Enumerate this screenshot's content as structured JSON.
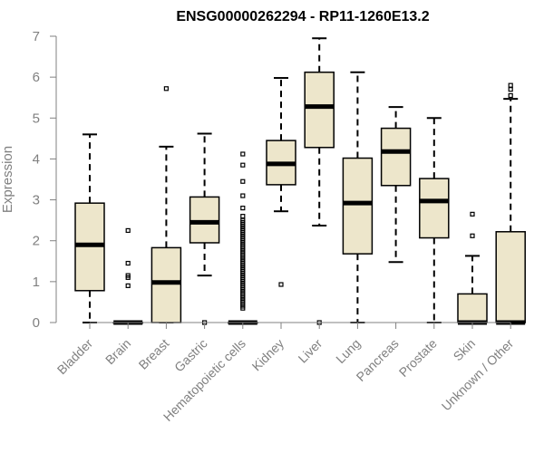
{
  "chart_data": {
    "type": "boxplot",
    "title": "ENSG00000262294 - RP11-1260E13.2",
    "ylabel": "Expression",
    "ylim": [
      0,
      7
    ],
    "yticks": [
      0,
      1,
      2,
      3,
      4,
      5,
      6,
      7
    ],
    "grid": false,
    "legend": "none",
    "box_fill": "#ede6cb",
    "categories": [
      "Bladder",
      "Brain",
      "Breast",
      "Gastric",
      "Hematopoietic cells",
      "Kidney",
      "Liver",
      "Lung",
      "Pancreas",
      "Prostate",
      "Skin",
      "Unknown / Other"
    ],
    "boxes": [
      {
        "name": "Bladder",
        "whisker_low": 0,
        "q1": 0.78,
        "median": 1.9,
        "q3": 2.92,
        "whisker_high": 4.6,
        "outliers": []
      },
      {
        "name": "Brain",
        "whisker_low": 0,
        "q1": 0,
        "median": 0,
        "q3": 0,
        "whisker_high": 0,
        "outliers": [
          0.9,
          1.1,
          1.15,
          1.45,
          2.25
        ]
      },
      {
        "name": "Breast",
        "whisker_low": 0,
        "q1": 0,
        "median": 0.98,
        "q3": 1.83,
        "whisker_high": 4.3,
        "outliers": [
          5.72
        ]
      },
      {
        "name": "Gastric",
        "whisker_low": 1.15,
        "q1": 1.95,
        "median": 2.45,
        "q3": 3.07,
        "whisker_high": 4.62,
        "outliers": [
          0
        ]
      },
      {
        "name": "Hematopoietic cells",
        "whisker_low": 0,
        "q1": 0,
        "median": 0,
        "q3": 0,
        "whisker_high": 0,
        "outliers": [
          0.35,
          0.4,
          0.45,
          0.5,
          0.55,
          0.6,
          0.65,
          0.7,
          0.75,
          0.8,
          0.85,
          0.9,
          0.95,
          1.0,
          1.05,
          1.1,
          1.15,
          1.2,
          1.25,
          1.3,
          1.35,
          1.4,
          1.45,
          1.5,
          1.55,
          1.6,
          1.65,
          1.7,
          1.75,
          1.8,
          1.85,
          1.9,
          1.95,
          2.0,
          2.05,
          2.1,
          2.15,
          2.2,
          2.25,
          2.3,
          2.35,
          2.4,
          2.45,
          2.5,
          2.6,
          2.8,
          3.1,
          3.45,
          3.85,
          4.12
        ]
      },
      {
        "name": "Kidney",
        "whisker_low": 2.72,
        "q1": 3.37,
        "median": 3.88,
        "q3": 4.45,
        "whisker_high": 5.98,
        "outliers": [
          0.93
        ]
      },
      {
        "name": "Liver",
        "whisker_low": 2.37,
        "q1": 4.28,
        "median": 5.28,
        "q3": 6.12,
        "whisker_high": 6.95,
        "outliers": [
          0
        ]
      },
      {
        "name": "Lung",
        "whisker_low": 0,
        "q1": 1.68,
        "median": 2.92,
        "q3": 4.02,
        "whisker_high": 6.12,
        "outliers": []
      },
      {
        "name": "Pancreas",
        "whisker_low": 1.48,
        "q1": 3.35,
        "median": 4.18,
        "q3": 4.75,
        "whisker_high": 5.27,
        "outliers": []
      },
      {
        "name": "Prostate",
        "whisker_low": 0,
        "q1": 2.07,
        "median": 2.97,
        "q3": 3.52,
        "whisker_high": 5.0,
        "outliers": []
      },
      {
        "name": "Skin",
        "whisker_low": 0,
        "q1": 0,
        "median": 0,
        "q3": 0.7,
        "whisker_high": 1.63,
        "outliers": [
          2.12,
          2.65
        ]
      },
      {
        "name": "Unknown / Other",
        "whisker_low": 0,
        "q1": 0,
        "median": 0,
        "q3": 2.22,
        "whisker_high": 5.47,
        "outliers": [
          5.55,
          5.7,
          5.8
        ]
      }
    ]
  }
}
